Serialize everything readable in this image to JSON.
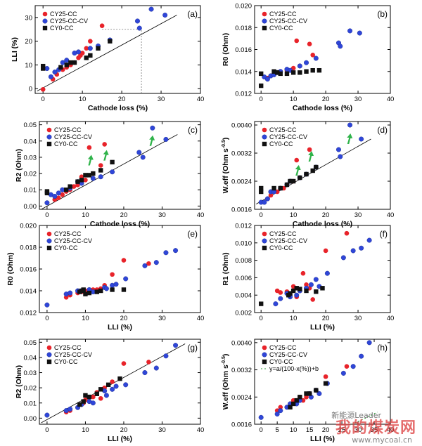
{
  "legend_names": [
    "CY25-CC",
    "CY25-CC-CV",
    "CY0-CC"
  ],
  "colors": {
    "CY25-CC": "#e8232a",
    "CY25-CC-CV": "#2f46d8",
    "CY0-CC": "#111111",
    "arrow": "#2fb34a",
    "fit": "#2e9e3a"
  },
  "watermark": {
    "main": "我的煤炭网",
    "sub": "www.mycoal.cn",
    "tag": "新能源Leader"
  },
  "chart_data": [
    {
      "panel": "(a)",
      "type": "scatter",
      "xlabel": "Cathode loss (%)",
      "ylabel": "LLI (%)",
      "xlim": [
        -2,
        40
      ],
      "ylim": [
        -2,
        35
      ],
      "xticks": [
        "0",
        "10",
        "20",
        "30",
        "40"
      ],
      "yticks": [
        "0",
        "10",
        "20",
        "30"
      ],
      "fit_line": [
        [
          -1.5,
          -1
        ],
        [
          34,
          31
        ]
      ],
      "ref_lines": [
        [
          [
            25,
            -2
          ],
          [
            25,
            25
          ]
        ],
        [
          [
            15,
            25
          ],
          [
            25,
            25
          ]
        ]
      ],
      "series": [
        {
          "name": "CY25-CC",
          "x": [
            0,
            2.5,
            3.5,
            5,
            6,
            7,
            8,
            9,
            9.5,
            10,
            11,
            12,
            15
          ],
          "y": [
            -0.3,
            4,
            6,
            8,
            9,
            10,
            11,
            13,
            14,
            15,
            17,
            20,
            26.5
          ]
        },
        {
          "name": "CY25-CC-CV",
          "x": [
            1,
            2,
            3,
            4,
            5,
            6,
            8,
            9,
            12,
            14,
            17,
            24,
            24.5,
            27.5,
            31
          ],
          "y": [
            8.5,
            5,
            7,
            8,
            11,
            12,
            15,
            15.5,
            17,
            18,
            20.5,
            28.5,
            25.5,
            33.5,
            31
          ]
        },
        {
          "name": "CY0-CC",
          "x": [
            0,
            0,
            4.5,
            6,
            7,
            8,
            11,
            12,
            14,
            17
          ],
          "y": [
            9.5,
            8.5,
            9,
            10,
            11,
            11,
            13,
            14,
            17,
            20
          ]
        }
      ]
    },
    {
      "panel": "(b)",
      "type": "scatter",
      "xlabel": "Cathode loss (%)",
      "ylabel": "R0 (Ohm)",
      "xlim": [
        -2,
        40
      ],
      "ylim": [
        0.012,
        0.02
      ],
      "xticks": [
        "0",
        "10",
        "20",
        "30",
        "40"
      ],
      "yticks": [
        "0.012",
        "0.014",
        "0.016",
        "0.018",
        "0.020"
      ],
      "series": [
        {
          "name": "CY25-CC",
          "x": [
            2,
            3,
            4,
            5,
            6,
            8,
            10,
            11,
            12,
            15,
            16
          ],
          "y": [
            0.0134,
            0.0136,
            0.0138,
            0.0139,
            0.014,
            0.0141,
            0.0143,
            0.0168,
            0.0145,
            0.0165,
            0.0155
          ]
        },
        {
          "name": "CY25-CC-CV",
          "x": [
            1,
            2,
            3,
            4,
            5,
            6,
            8,
            9,
            12,
            14,
            17,
            24,
            24.5,
            27.5,
            30.5
          ],
          "y": [
            0.0135,
            0.0133,
            0.0136,
            0.0137,
            0.0139,
            0.014,
            0.0142,
            0.0141,
            0.0145,
            0.0148,
            0.0152,
            0.0166,
            0.0163,
            0.0177,
            0.0175
          ]
        },
        {
          "name": "CY0-CC",
          "x": [
            0,
            0,
            4,
            5,
            6,
            8,
            10,
            12,
            14,
            16,
            18
          ],
          "y": [
            0.0127,
            0.0138,
            0.014,
            0.0139,
            0.0138,
            0.0138,
            0.0139,
            0.0139,
            0.014,
            0.0141,
            0.0141
          ]
        }
      ]
    },
    {
      "panel": "(c)",
      "type": "scatter",
      "xlabel": "Cathode loss (%)",
      "ylabel": "R2 (Ohm)",
      "xlim": [
        -2,
        40
      ],
      "ylim": [
        -0.002,
        0.052
      ],
      "xticks": [
        "0",
        "10",
        "20",
        "30",
        "40"
      ],
      "yticks": [
        "0.00",
        "0.01",
        "0.02",
        "0.03",
        "0.04",
        "0.05"
      ],
      "fit_line": [
        [
          -1.5,
          -0.002
        ],
        [
          34,
          0.044
        ]
      ],
      "arrows": [
        [
          11,
          0.028
        ],
        [
          15,
          0.031
        ],
        [
          27,
          0.04
        ]
      ],
      "series": [
        {
          "name": "CY25-CC",
          "x": [
            2,
            3,
            4,
            5,
            6,
            7,
            8,
            9,
            10,
            11,
            12,
            14,
            15
          ],
          "y": [
            0.004,
            0.005,
            0.007,
            0.009,
            0.01,
            0.012,
            0.013,
            0.018,
            0.016,
            0.036,
            0.02,
            0.025,
            0.038
          ]
        },
        {
          "name": "CY25-CC-CV",
          "x": [
            0,
            1,
            2,
            3,
            4,
            6,
            8,
            9,
            12,
            14,
            17,
            24,
            25,
            27.5,
            31
          ],
          "y": [
            0.002,
            0.007,
            0.006,
            0.008,
            0.01,
            0.011,
            0.015,
            0.014,
            0.017,
            0.018,
            0.021,
            0.033,
            0.03,
            0.048,
            0.041
          ]
        },
        {
          "name": "CY0-CC",
          "x": [
            0,
            0,
            5,
            6,
            8,
            9,
            10,
            11,
            12,
            14,
            17
          ],
          "y": [
            0.009,
            0.008,
            0.01,
            0.012,
            0.015,
            0.016,
            0.019,
            0.019,
            0.02,
            0.022,
            0.027
          ]
        }
      ]
    },
    {
      "panel": "(d)",
      "type": "scatter",
      "xlabel": "Cathode loss (%)",
      "ylabel": "W.eff (Ohm s^-0.5)",
      "xlim": [
        -2,
        40
      ],
      "ylim": [
        0.0016,
        0.0041
      ],
      "xticks": [
        "0",
        "10",
        "20",
        "30",
        "40"
      ],
      "yticks": [
        "0.0016",
        "0.0024",
        "0.0032",
        "0.0040"
      ],
      "fit_line": [
        [
          -1.5,
          0.00175
        ],
        [
          34,
          0.0036
        ]
      ],
      "arrows": [
        [
          11,
          0.0027
        ],
        [
          15,
          0.0031
        ],
        [
          27,
          0.0036
        ]
      ],
      "series": [
        {
          "name": "CY25-CC",
          "x": [
            2,
            3,
            4,
            5,
            6,
            7,
            8,
            9,
            10,
            11,
            12,
            14,
            15
          ],
          "y": [
            0.0019,
            0.002,
            0.0021,
            0.0021,
            0.0022,
            0.0022,
            0.0023,
            0.0024,
            0.0024,
            0.003,
            0.0025,
            0.0026,
            0.0033
          ]
        },
        {
          "name": "CY25-CC-CV",
          "x": [
            0,
            1,
            2,
            3,
            4,
            6,
            8,
            9,
            12,
            14,
            17,
            24,
            24.5,
            27.5,
            31
          ],
          "y": [
            0.0018,
            0.0018,
            0.0019,
            0.0021,
            0.0021,
            0.0022,
            0.0023,
            0.0024,
            0.0025,
            0.0026,
            0.0028,
            0.0033,
            0.0031,
            0.004,
            0.0036
          ]
        },
        {
          "name": "CY0-CC",
          "x": [
            0,
            0,
            4,
            6,
            8,
            9,
            10,
            12,
            14,
            16,
            17
          ],
          "y": [
            0.0022,
            0.0021,
            0.0022,
            0.0022,
            0.0023,
            0.0024,
            0.0024,
            0.0025,
            0.0026,
            0.0027,
            0.0028
          ]
        }
      ]
    },
    {
      "panel": "(e)",
      "type": "scatter",
      "xlabel": "LLI (%)",
      "ylabel": "R0 (Ohm)",
      "xlim": [
        -2,
        40
      ],
      "ylim": [
        0.012,
        0.02
      ],
      "xticks": [
        "0",
        "10",
        "20",
        "30",
        "40"
      ],
      "yticks": [
        "0.012",
        "0.014",
        "0.016",
        "0.018",
        "0.020"
      ],
      "series": [
        {
          "name": "CY25-CC",
          "x": [
            5,
            6,
            8,
            9,
            10,
            11,
            12,
            13,
            14,
            15,
            17,
            20,
            26.5
          ],
          "y": [
            0.0134,
            0.0136,
            0.0138,
            0.0139,
            0.014,
            0.014,
            0.0141,
            0.0141,
            0.0142,
            0.0145,
            0.0155,
            0.0168,
            0.0165
          ]
        },
        {
          "name": "CY25-CC-CV",
          "x": [
            0,
            5,
            6,
            8,
            9,
            11,
            12,
            15,
            15.5,
            17,
            18,
            20.5,
            25.5,
            28.5,
            31,
            33.5
          ],
          "y": [
            0.0127,
            0.0137,
            0.0138,
            0.014,
            0.014,
            0.0141,
            0.0139,
            0.0143,
            0.0142,
            0.0145,
            0.0146,
            0.0151,
            0.0163,
            0.0166,
            0.0175,
            0.0177
          ]
        },
        {
          "name": "CY0-CC",
          "x": [
            8.5,
            9,
            9.5,
            10,
            11,
            13,
            14,
            17,
            20
          ],
          "y": [
            0.0139,
            0.014,
            0.0141,
            0.0137,
            0.0138,
            0.0139,
            0.014,
            0.0141,
            0.0141
          ]
        }
      ]
    },
    {
      "panel": "(f)",
      "type": "scatter",
      "xlabel": "LLI (%)",
      "ylabel": "R1 (Ohm)",
      "xlim": [
        -2,
        40
      ],
      "ylim": [
        0.002,
        0.012
      ],
      "xticks": [
        "0",
        "10",
        "20",
        "30",
        "40"
      ],
      "yticks": [
        "0.002",
        "0.004",
        "0.006",
        "0.008",
        "0.010",
        "0.012"
      ],
      "series": [
        {
          "name": "CY25-CC",
          "x": [
            5,
            6,
            8,
            9,
            10,
            11,
            12,
            13,
            14,
            15,
            16,
            20,
            26.5
          ],
          "y": [
            0.0045,
            0.0043,
            0.0044,
            0.004,
            0.005,
            0.0038,
            0.0045,
            0.0065,
            0.0052,
            0.0048,
            0.0035,
            0.0091,
            0.0111
          ]
        },
        {
          "name": "CY25-CC-CV",
          "x": [
            4.5,
            6,
            8,
            9,
            11,
            12,
            14,
            15.5,
            17,
            18,
            20.5,
            25.5,
            28.5,
            31,
            33.5
          ],
          "y": [
            0.003,
            0.0036,
            0.0042,
            0.0038,
            0.004,
            0.0045,
            0.0048,
            0.0052,
            0.0058,
            0.005,
            0.0065,
            0.0083,
            0.0091,
            0.0094,
            0.0103
          ]
        },
        {
          "name": "CY0-CC",
          "x": [
            0,
            8.5,
            9,
            10,
            11,
            12,
            14,
            17,
            19
          ],
          "y": [
            0.003,
            0.004,
            0.0042,
            0.0045,
            0.0048,
            0.0047,
            0.0045,
            0.0044,
            0.0048
          ]
        }
      ]
    },
    {
      "panel": "(g)",
      "type": "scatter",
      "xlabel": "LLI (%)",
      "ylabel": "R2 (Ohm)",
      "xlim": [
        -2,
        40
      ],
      "ylim": [
        -0.004,
        0.052
      ],
      "xticks": [
        "0",
        "10",
        "20",
        "30",
        "40"
      ],
      "yticks": [
        "0.00",
        "0.01",
        "0.02",
        "0.03",
        "0.04",
        "0.05"
      ],
      "fit_line": [
        [
          -1.5,
          -0.003
        ],
        [
          36,
          0.049
        ]
      ],
      "series": [
        {
          "name": "CY25-CC",
          "x": [
            5,
            6,
            8,
            9,
            9.5,
            10,
            11,
            12,
            13,
            14,
            15,
            17,
            20,
            26.5
          ],
          "y": [
            0.004,
            0.005,
            0.007,
            0.009,
            0.01,
            0.012,
            0.011,
            0.014,
            0.017,
            0.013,
            0.02,
            0.024,
            0.036,
            0.037
          ]
        },
        {
          "name": "CY25-CC-CV",
          "x": [
            0,
            5,
            6,
            8,
            9,
            11,
            12,
            15,
            15.5,
            17,
            18,
            20.5,
            25.5,
            28.5,
            31,
            33.5
          ],
          "y": [
            0.002,
            0.005,
            0.006,
            0.007,
            0.009,
            0.011,
            0.01,
            0.018,
            0.015,
            0.019,
            0.021,
            0.022,
            0.03,
            0.033,
            0.041,
            0.048
          ]
        },
        {
          "name": "CY0-CC",
          "x": [
            8.5,
            9.5,
            10,
            11,
            13,
            14,
            16,
            19
          ],
          "y": [
            0.009,
            0.011,
            0.015,
            0.014,
            0.016,
            0.019,
            0.022,
            0.026
          ]
        }
      ]
    },
    {
      "panel": "(h)",
      "type": "scatter",
      "xlabel": "LLI (%)",
      "ylabel": "W.eff (Ohm s^-0.5)",
      "xlim": [
        -2,
        40
      ],
      "ylim": [
        0.0016,
        0.0041
      ],
      "xticks": [
        "0",
        "5",
        "10",
        "15",
        "20",
        "25",
        "30",
        "35",
        "40"
      ],
      "yticks": [
        "0.0016",
        "0.0024",
        "0.0032",
        "0.0040"
      ],
      "fit_curve": {
        "a": 0.2085,
        "b": -0.0013,
        "x_from": 0,
        "x_to": 36
      },
      "series": [
        {
          "name": "CY25-CC",
          "x": [
            5,
            6,
            8,
            9,
            9.5,
            10,
            11,
            12,
            13,
            14,
            15,
            17,
            20,
            26.5
          ],
          "y": [
            0.002,
            0.0021,
            0.0021,
            0.0022,
            0.0022,
            0.0023,
            0.0023,
            0.0024,
            0.0023,
            0.0024,
            0.0025,
            0.0026,
            0.003,
            0.0033
          ]
        },
        {
          "name": "CY25-CC-CV",
          "x": [
            0,
            5,
            6,
            8,
            9,
            11,
            12,
            15,
            15.5,
            17,
            18,
            20.5,
            25.5,
            28.5,
            31,
            33.5
          ],
          "y": [
            0.0018,
            0.0019,
            0.002,
            0.0021,
            0.0022,
            0.0022,
            0.0023,
            0.0025,
            0.0024,
            0.0026,
            0.0025,
            0.0028,
            0.0031,
            0.0033,
            0.0036,
            0.004
          ]
        },
        {
          "name": "CY0-CC",
          "x": [
            9,
            10,
            11,
            12,
            14,
            15,
            17,
            20
          ],
          "y": [
            0.0021,
            0.0022,
            0.0023,
            0.0024,
            0.0025,
            0.0025,
            0.0026,
            0.0028
          ]
        }
      ]
    }
  ],
  "fit_label_h": "y=a/(100-x(%))+b"
}
